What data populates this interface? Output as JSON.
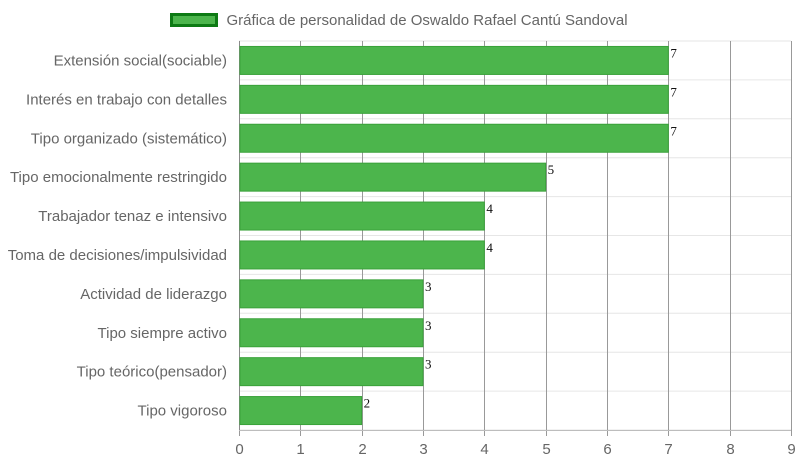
{
  "chart_data": {
    "type": "bar",
    "orientation": "horizontal",
    "categories": [
      "Extensión social(sociable)",
      "Interés en trabajo con detalles",
      "Tipo organizado (sistemático)",
      "Tipo emocionalmente restringido",
      "Trabajador tenaz e intensivo",
      "Toma de decisiones/impulsividad",
      "Actividad de liderazgo",
      "Tipo siempre activo",
      "Tipo teórico(pensador)",
      "Tipo vigoroso"
    ],
    "series": [
      {
        "name": "Gráfica de personalidad de Oswaldo Rafael Cantú Sandoval",
        "values": [
          7,
          7,
          7,
          5,
          4,
          4,
          3,
          3,
          3,
          2
        ]
      }
    ],
    "value_labels": [
      "7",
      "7",
      "7",
      "5",
      "4",
      "4",
      "3",
      "3",
      "3",
      "2"
    ],
    "x_ticks": [
      "0",
      "1",
      "2",
      "3",
      "4",
      "5",
      "6",
      "7",
      "8",
      "9"
    ],
    "xlim": [
      0,
      9
    ],
    "xlabel": "",
    "ylabel": "",
    "grid": true,
    "legend_position": "top",
    "colors": {
      "bar_fill": "#4cb54c",
      "bar_border": "#3aa23a",
      "legend_border": "#0d7a14",
      "grid_vertical": "#999999",
      "grid_horizontal": "#e6e6e6"
    }
  }
}
